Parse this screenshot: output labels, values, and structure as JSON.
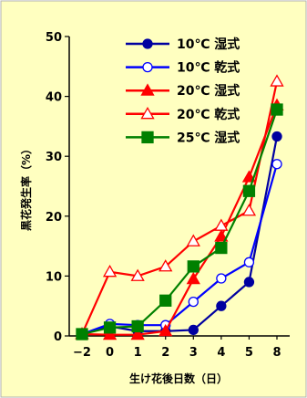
{
  "chart_data": {
    "type": "line",
    "x_categories": [
      "−2",
      "0",
      "1",
      "2",
      "3",
      "4",
      "5",
      "8"
    ],
    "xlabel": "生け花後日数（日）",
    "ylabel": "黒花発生率（%）",
    "ylim": [
      0,
      50
    ],
    "yticks": [
      "0",
      "10",
      "20",
      "30",
      "40",
      "50"
    ],
    "grid": false,
    "legend_position": "top-right",
    "plot_background": "#ffffc0",
    "series": [
      {
        "name": "10℃ 湿式",
        "color": "#0000a0",
        "marker": "circle",
        "filled": true,
        "values": [
          0.3,
          1.6,
          0.8,
          0.8,
          1.0,
          5.0,
          9.0,
          33.3
        ]
      },
      {
        "name": "10℃ 乾式",
        "color": "#0000ff",
        "marker": "circle",
        "filled": false,
        "values": [
          0.3,
          2.0,
          1.8,
          1.8,
          5.7,
          9.6,
          12.3,
          28.7
        ]
      },
      {
        "name": "20℃ 湿式",
        "color": "#ff0000",
        "marker": "triangle",
        "filled": true,
        "values": [
          0.3,
          0.2,
          0.2,
          0.8,
          9.5,
          16.6,
          26.5,
          38.5
        ]
      },
      {
        "name": "20℃ 乾式",
        "color": "#ff0000",
        "marker": "triangle",
        "filled": false,
        "values": [
          0.3,
          10.7,
          10.0,
          11.6,
          15.8,
          18.4,
          20.9,
          42.5
        ]
      },
      {
        "name": "25℃ 湿式",
        "color": "#008000",
        "marker": "square",
        "filled": true,
        "values": [
          0.3,
          1.4,
          1.6,
          5.9,
          11.6,
          14.7,
          24.2,
          37.8
        ]
      }
    ]
  }
}
